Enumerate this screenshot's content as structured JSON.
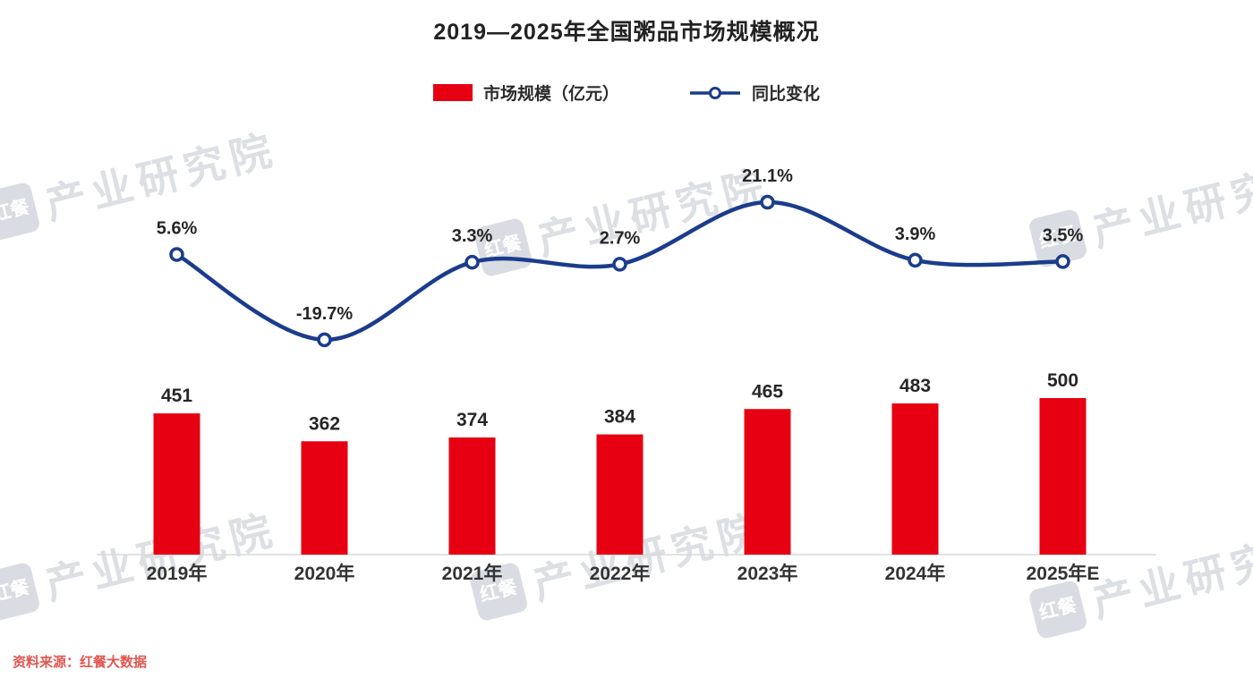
{
  "title": "2019—2025年全国粥品市场规模概况",
  "legend": {
    "bar_label": "市场规模（亿元）",
    "line_label": "同比变化"
  },
  "source": "资料来源：红餐大数据",
  "watermark": {
    "logo": "红餐",
    "text": "产业研究院"
  },
  "colors": {
    "bar": "#e60012",
    "line": "#1b3c8c",
    "label": "#262626",
    "axis": "#d9d9d9"
  },
  "chart_data": {
    "type": "bar",
    "subtype": "combo-bar-line",
    "title": "2019—2025年全国粥品市场规模概况",
    "categories": [
      "2019年",
      "2020年",
      "2021年",
      "2022年",
      "2023年",
      "2024年",
      "2025年E"
    ],
    "series": [
      {
        "name": "市场规模（亿元）",
        "type": "bar",
        "values": [
          451,
          362,
          374,
          384,
          465,
          483,
          500
        ]
      },
      {
        "name": "同比变化",
        "type": "line",
        "values_pct": [
          5.6,
          -19.7,
          3.3,
          2.7,
          21.1,
          3.9,
          3.5
        ],
        "labels": [
          "5.6%",
          "-19.7%",
          "3.3%",
          "2.7%",
          "21.1%",
          "3.9%",
          "3.5%"
        ]
      }
    ],
    "xlabel": "",
    "ylabel": "",
    "legend_position": "top",
    "grid": false,
    "axes_hidden": true,
    "data_labels": true,
    "source": "资料来源：红餐大数据"
  }
}
